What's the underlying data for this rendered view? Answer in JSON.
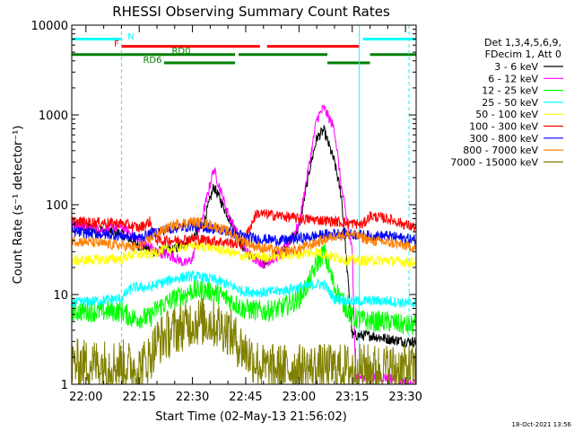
{
  "chart_data": {
    "type": "line",
    "title": "RHESSI Observing Summary Count Rates",
    "xlabel": "Start Time (02-May-13 21:56:02)",
    "ylabel": "Count Rate (s⁻¹ detector⁻¹)",
    "x_ticks": [
      "22:00",
      "22:15",
      "22:30",
      "22:45",
      "23:00",
      "23:15",
      "23:30"
    ],
    "x_tick_minutes": [
      0,
      15,
      30,
      45,
      60,
      75,
      90
    ],
    "xlim_minutes": [
      -4,
      93
    ],
    "y_scale": "log",
    "ylim": [
      1,
      10000
    ],
    "y_ticks": [
      "1",
      "10",
      "100",
      "1000",
      "10000"
    ],
    "grid": false,
    "timestamp": "18-Oct-2021 13:56",
    "legend_header": [
      "Det 1,3,4,5,6,9,",
      "FDecim 1, Att 0"
    ],
    "legend_placement": "right",
    "series": [
      {
        "name": "3 - 6 keV",
        "color": "#000000",
        "x": [
          -4,
          5,
          10,
          15,
          20,
          25,
          30,
          33,
          36,
          40,
          45,
          50,
          55,
          60,
          63,
          65,
          67,
          70,
          72,
          75,
          76,
          80,
          85,
          90,
          93
        ],
        "values": [
          60,
          52,
          48,
          35,
          30,
          32,
          42,
          60,
          160,
          75,
          30,
          22,
          30,
          55,
          250,
          550,
          680,
          300,
          120,
          3.5,
          3.5,
          3.5,
          3.2,
          3.0,
          3.0
        ]
      },
      {
        "name": "6 - 12 keV",
        "color": "#ff00ff",
        "x": [
          -4,
          5,
          10,
          15,
          20,
          25,
          28,
          30,
          33,
          36,
          40,
          45,
          50,
          55,
          60,
          63,
          65,
          67,
          70,
          72,
          75,
          76,
          85,
          90,
          93
        ],
        "values": [
          60,
          52,
          58,
          40,
          30,
          26,
          22,
          25,
          80,
          250,
          80,
          30,
          22,
          28,
          60,
          300,
          900,
          1200,
          700,
          150,
          30,
          1.2,
          1.2,
          1.0,
          1.0
        ]
      },
      {
        "name": "12 - 25 keV",
        "color": "#00ff00",
        "x": [
          -4,
          10,
          13,
          18,
          20,
          25,
          30,
          35,
          40,
          44,
          50,
          55,
          60,
          63,
          65,
          67,
          70,
          75,
          80,
          85,
          90,
          93
        ],
        "values": [
          6.5,
          6.5,
          5.5,
          5.5,
          7,
          9,
          11,
          11,
          9,
          7,
          6.5,
          7,
          9,
          14,
          22,
          30,
          12,
          5.5,
          5,
          5,
          4.5,
          4.5
        ]
      },
      {
        "name": "25 - 50 keV",
        "color": "#00ffff",
        "x": [
          -4,
          10,
          13,
          18,
          20,
          25,
          30,
          35,
          40,
          44,
          50,
          55,
          60,
          65,
          67,
          70,
          75,
          80,
          85,
          90,
          93
        ],
        "values": [
          8,
          9,
          12,
          12,
          13,
          15,
          16,
          15,
          13,
          11,
          10.5,
          11,
          12,
          13,
          13,
          9,
          8.5,
          8.5,
          8.5,
          8,
          8
        ]
      },
      {
        "name": "50 - 100 keV",
        "color": "#ffff00",
        "x": [
          -4,
          10,
          13,
          18,
          20,
          25,
          30,
          35,
          40,
          44,
          50,
          55,
          60,
          65,
          70,
          75,
          80,
          85,
          90,
          93
        ],
        "values": [
          24,
          25,
          28,
          28,
          30,
          33,
          35,
          34,
          30,
          27,
          26,
          27,
          28,
          30,
          26,
          24,
          24,
          24,
          23,
          23
        ]
      },
      {
        "name": "100 - 300 keV",
        "color": "#ff0000",
        "x": [
          -4,
          10,
          13,
          15,
          18,
          20,
          25,
          30,
          35,
          40,
          44,
          48,
          55,
          60,
          65,
          70,
          75,
          78,
          80,
          85,
          90,
          93
        ],
        "values": [
          65,
          62,
          58,
          55,
          65,
          40,
          40,
          42,
          40,
          38,
          36,
          80,
          75,
          70,
          68,
          65,
          62,
          60,
          75,
          70,
          60,
          55
        ]
      },
      {
        "name": "300 - 800 keV",
        "color": "#0000ff",
        "x": [
          -4,
          10,
          15,
          20,
          25,
          30,
          35,
          40,
          44,
          48,
          55,
          60,
          65,
          70,
          75,
          80,
          85,
          90,
          93
        ],
        "values": [
          50,
          45,
          43,
          50,
          55,
          58,
          55,
          50,
          45,
          42,
          40,
          42,
          45,
          48,
          47,
          45,
          45,
          42,
          40
        ]
      },
      {
        "name": "800 - 7000 keV",
        "color": "#ff8000",
        "x": [
          -4,
          10,
          15,
          20,
          25,
          30,
          35,
          40,
          44,
          48,
          55,
          60,
          65,
          70,
          75,
          80,
          85,
          90,
          93
        ],
        "values": [
          40,
          35,
          33,
          48,
          60,
          65,
          60,
          50,
          40,
          34,
          30,
          32,
          38,
          45,
          47,
          40,
          38,
          35,
          33
        ]
      },
      {
        "name": "7000 - 15000 keV",
        "color": "#808000",
        "x": [
          -4,
          10,
          15,
          18,
          20,
          25,
          30,
          35,
          40,
          44,
          50,
          55,
          60,
          65,
          70,
          75,
          80,
          85,
          90,
          93
        ],
        "values": [
          1.7,
          1.7,
          1.5,
          2.0,
          3.0,
          4.0,
          5.0,
          5.0,
          4.0,
          2.5,
          1.5,
          1.5,
          1.5,
          1.5,
          1.5,
          1.5,
          1.5,
          1.5,
          1.5,
          1.5
        ]
      }
    ],
    "flag_bars": [
      {
        "label": "N",
        "color": "#00ffff",
        "value": 7000,
        "segments": [
          [
            -4,
            10
          ],
          [
            78,
            93
          ]
        ]
      },
      {
        "label": "F",
        "color": "#ff0000",
        "value": 5800,
        "segments": [
          [
            10,
            49
          ],
          [
            51,
            77
          ]
        ]
      },
      {
        "label": "RD0",
        "color": "#008000",
        "value": 4700,
        "segments": [
          [
            -4,
            42
          ],
          [
            43,
            68
          ],
          [
            80,
            93
          ]
        ]
      },
      {
        "label": "RD6",
        "color": "#008000",
        "value": 3800,
        "segments": [
          [
            22,
            42
          ],
          [
            68,
            80
          ]
        ]
      }
    ],
    "vertical_lines": [
      {
        "x": -4,
        "color": "#00ffff",
        "style": "solid"
      },
      {
        "x": 10,
        "color": "#00ffff",
        "style": "dashed"
      },
      {
        "x": 77,
        "color": "#00ffff",
        "style": "solid"
      },
      {
        "x": 91,
        "color": "#00ffff",
        "style": "dashed"
      }
    ]
  }
}
